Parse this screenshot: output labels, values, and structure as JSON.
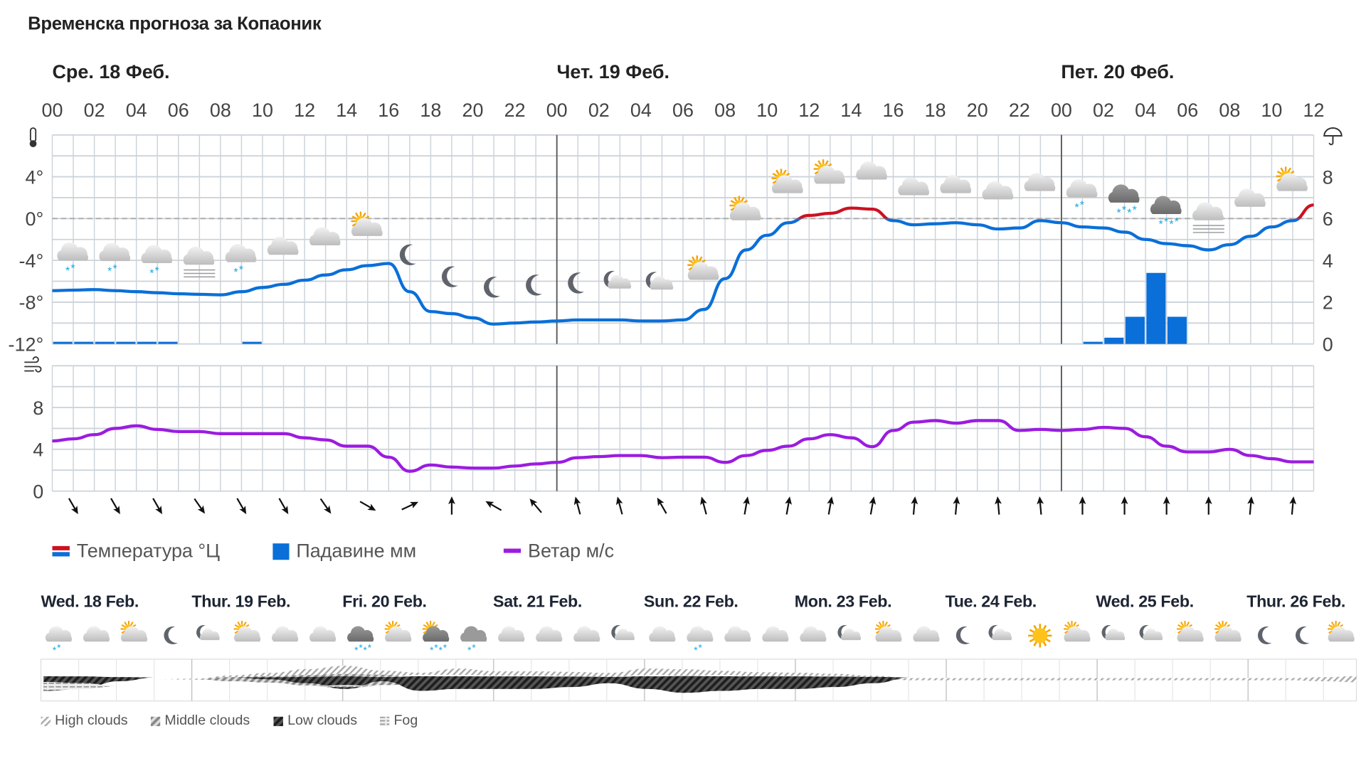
{
  "title": "Временска прогноза за Копаоник",
  "days": [
    "Сре. 18 Феб.",
    "Чет. 19 Феб.",
    "Пет. 20 Феб."
  ],
  "hour_labels": [
    "00",
    "02",
    "04",
    "06",
    "08",
    "10",
    "12",
    "14",
    "16",
    "18",
    "20",
    "22",
    "00",
    "02",
    "04",
    "06",
    "08",
    "10",
    "12",
    "14",
    "16",
    "18",
    "20",
    "22",
    "00",
    "02",
    "04",
    "06",
    "08",
    "10",
    "12"
  ],
  "colors": {
    "temp_below_zero": "#0a6fd8",
    "temp_above_zero": "#cc1122",
    "precip": "#0a6fd8",
    "wind": "#9b1ce0",
    "grid": "#cdd3da"
  },
  "chart_data": [
    {
      "type": "line",
      "ylabel_icon": "thermometer-icon",
      "y2label_icon": "umbrella-icon",
      "x_unit": "hour",
      "x_range": [
        0,
        60
      ],
      "ylim": [
        -12,
        8
      ],
      "y_ticks": [
        "4°",
        "0°",
        "-4°",
        "-8°",
        "-12°"
      ],
      "y_tick_values": [
        4,
        0,
        -4,
        -8,
        -12
      ],
      "y2lim": [
        0,
        10
      ],
      "y2_ticks": [
        "8",
        "6",
        "4",
        "2",
        "0"
      ],
      "y2_tick_values": [
        8,
        6,
        4,
        2,
        0
      ],
      "temperature": [
        -6.9,
        -6.85,
        -6.8,
        -6.9,
        -7.0,
        -7.1,
        -7.2,
        -7.25,
        -7.3,
        -7.0,
        -6.6,
        -6.3,
        -5.9,
        -5.4,
        -4.9,
        -4.5,
        -4.3,
        -7.0,
        -8.9,
        -9.1,
        -9.5,
        -10.1,
        -10.0,
        -9.9,
        -9.8,
        -9.7,
        -9.7,
        -9.7,
        -9.8,
        -9.8,
        -9.7,
        -8.7,
        -5.75,
        -3.0,
        -1.6,
        -0.4,
        0.3,
        0.5,
        1.0,
        0.9,
        -0.2,
        -0.6,
        -0.5,
        -0.4,
        -0.6,
        -1.0,
        -0.9,
        -0.2,
        -0.4,
        -0.8,
        -0.9,
        -1.3,
        -2.0,
        -2.4,
        -2.6,
        -3.0,
        -2.5,
        -1.7,
        -0.8,
        -0.2,
        1.3
      ],
      "precipitation": [
        {
          "hour": 0,
          "mm": 0.05
        },
        {
          "hour": 1,
          "mm": 0.05
        },
        {
          "hour": 2,
          "mm": 0.05
        },
        {
          "hour": 3,
          "mm": 0.05
        },
        {
          "hour": 4,
          "mm": 0.05
        },
        {
          "hour": 5,
          "mm": 0.05
        },
        {
          "hour": 9,
          "mm": 0.05
        },
        {
          "hour": 49,
          "mm": 0.05
        },
        {
          "hour": 50,
          "mm": 0.3
        },
        {
          "hour": 51,
          "mm": 1.3
        },
        {
          "hour": 52,
          "mm": 3.4
        },
        {
          "hour": 53,
          "mm": 1.3
        }
      ],
      "symbols": [
        "snow-cloud",
        "snow-cloud",
        "snow-cloud",
        "fog-cloud",
        "snow-cloud",
        "cloud",
        "cloud",
        "sun-cloud",
        "moon",
        "moon",
        "moon",
        "moon",
        "moon",
        "moon-cloud",
        "moon-cloud",
        "sun-cloud",
        "sun-cloud",
        "sun-cloud",
        "sun-cloud",
        "cloud",
        "cloud",
        "cloud",
        "cloud",
        "cloud",
        "snow-cloud",
        "heavy-snow-cloud",
        "heavy-snow-cloud",
        "fog-cloud",
        "cloud",
        "sun-cloud"
      ]
    },
    {
      "type": "line",
      "ylabel_icon": "wind-icon",
      "x_unit": "hour",
      "x_range": [
        0,
        60
      ],
      "ylim": [
        0,
        10
      ],
      "y_ticks": [
        "8",
        "4",
        "0"
      ],
      "y_tick_values": [
        8,
        4,
        0
      ],
      "wind": [
        4.8,
        5.0,
        5.4,
        6.0,
        6.25,
        5.9,
        5.7,
        5.7,
        5.5,
        5.5,
        5.5,
        5.5,
        5.1,
        4.9,
        4.3,
        4.3,
        3.25,
        1.9,
        2.5,
        2.3,
        2.2,
        2.2,
        2.4,
        2.6,
        2.75,
        3.2,
        3.3,
        3.4,
        3.4,
        3.2,
        3.25,
        3.25,
        2.75,
        3.4,
        3.9,
        4.3,
        5.0,
        5.4,
        5.1,
        4.25,
        5.8,
        6.6,
        6.75,
        6.5,
        6.75,
        6.75,
        5.8,
        5.9,
        5.8,
        5.9,
        6.1,
        6.0,
        5.2,
        4.3,
        3.75,
        3.75,
        4.0,
        3.4,
        3.1,
        2.8,
        2.8
      ],
      "wind_direction_arrows_deg": [
        150,
        150,
        150,
        145,
        150,
        150,
        145,
        120,
        65,
        0,
        -60,
        -40,
        -15,
        -15,
        -30,
        -15,
        10,
        10,
        10,
        10,
        5,
        5,
        -5,
        -5,
        0,
        0,
        0,
        0,
        5,
        5
      ]
    }
  ],
  "legend": {
    "temperature": "Температура °Ц",
    "precipitation": "Падавине мм",
    "wind": "Ветар м/с"
  },
  "long_range": {
    "days": [
      "Wed. 18 Feb.",
      "Thur. 19 Feb.",
      "Fri. 20 Feb.",
      "Sat. 21 Feb.",
      "Sun. 22 Feb.",
      "Mon. 23 Feb.",
      "Tue. 24 Feb.",
      "Wed. 25 Feb.",
      "Thur. 26 Feb."
    ],
    "symbols": [
      "snow-cloud",
      "cloud",
      "sun-cloud",
      "moon",
      "moon-cloud",
      "sun-cloud",
      "cloud",
      "cloud",
      "heavy-snow-cloud",
      "sun-cloud",
      "sun-heavy-snow-cloud",
      "grey-snow-cloud",
      "cloud",
      "cloud",
      "cloud",
      "moon-cloud",
      "cloud",
      "snow-cloud",
      "cloud",
      "cloud",
      "cloud",
      "moon-cloud",
      "sun-cloud",
      "cloud",
      "moon",
      "moon-cloud",
      "sun",
      "sun-cloud",
      "moon-cloud",
      "moon-cloud",
      "sun-cloud",
      "sun-cloud",
      "moon",
      "moon",
      "sun-cloud",
      "cloud"
    ],
    "low_clouds": [
      0.7,
      0.6,
      0.2,
      0,
      0,
      0,
      0.1,
      0.3,
      0.6,
      0.2,
      0.7,
      0.6,
      0.6,
      0.6,
      0.5,
      0.3,
      0.6,
      0.8,
      0.7,
      0.6,
      0.6,
      0.5,
      0.3,
      0,
      0,
      0,
      0,
      0,
      0,
      0,
      0,
      0,
      0,
      0,
      0,
      0
    ],
    "middle_clouds": [
      0,
      0,
      0,
      0,
      0,
      0.2,
      0.3,
      0.5,
      0.7,
      0.5,
      0.2,
      0.5,
      0.3,
      0.3,
      0.3,
      0.3,
      0.5,
      0.3,
      0.3,
      0.2,
      0.2,
      0.2,
      0.1,
      0,
      0,
      0,
      0,
      0,
      0,
      0,
      0,
      0,
      0,
      0,
      0,
      0
    ],
    "high_clouds": [
      0,
      0,
      0,
      0,
      0.05,
      0.2,
      0.3,
      0.4,
      0.4,
      0.3,
      0.1,
      0.3,
      0.2,
      0.2,
      0.2,
      0.2,
      0.3,
      0.3,
      0.2,
      0.2,
      0.15,
      0.1,
      0.1,
      0.1,
      0.1,
      0.1,
      0.1,
      0.1,
      0.1,
      0.1,
      0.1,
      0.1,
      0.1,
      0.1,
      0.2,
      0.3
    ],
    "fog": [
      0.4,
      0.3,
      0,
      0,
      0,
      0,
      0,
      0,
      0.1,
      0,
      0,
      0,
      0,
      0,
      0,
      0,
      0,
      0,
      0,
      0,
      0,
      0,
      0,
      0,
      0,
      0,
      0,
      0,
      0,
      0,
      0,
      0,
      0,
      0,
      0,
      0
    ],
    "legend": {
      "high": "High clouds",
      "middle": "Middle clouds",
      "low": "Low clouds",
      "fog": "Fog"
    }
  }
}
